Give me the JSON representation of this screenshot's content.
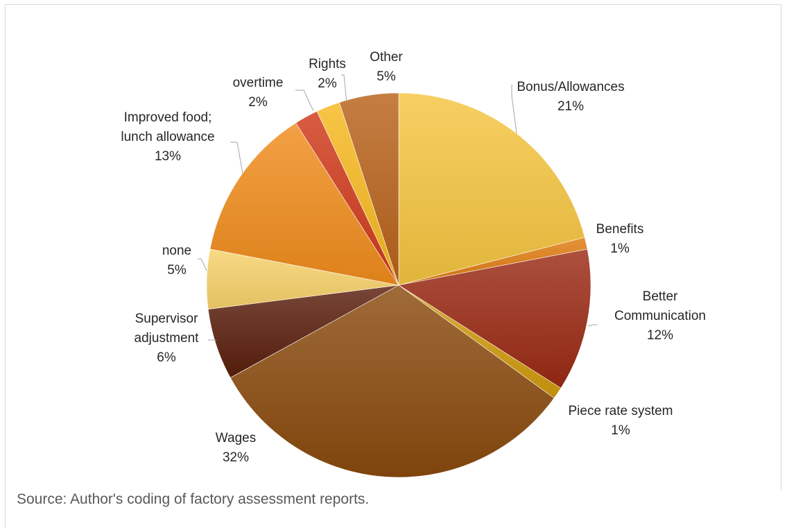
{
  "source_note": "Source: Author's coding of factory assessment reports.",
  "chart_data": {
    "type": "pie",
    "title": "",
    "start_angle_deg": 0,
    "direction": "clockwise",
    "slices": [
      {
        "label": "Bonus/Allowances",
        "value": 21,
        "display": "21%",
        "color": "#F5C540"
      },
      {
        "label": "Benefits",
        "value": 1,
        "display": "1%",
        "color": "#E07B10"
      },
      {
        "label": "Better Communication",
        "value": 12,
        "display": "12%",
        "color": "#9A2A14"
      },
      {
        "label": "Piece rate system",
        "value": 1,
        "display": "1%",
        "color": "#D19A0C"
      },
      {
        "label": "Wages",
        "value": 32,
        "display": "32%",
        "color": "#8A4A0E"
      },
      {
        "label": "Supervisor adjustment",
        "value": 6,
        "display": "6%",
        "color": "#5A1E0C"
      },
      {
        "label": "none",
        "value": 5,
        "display": "5%",
        "color": "#F7D26A"
      },
      {
        "label": "Improved food; lunch allowance",
        "value": 13,
        "display": "13%",
        "color": "#F08C1C"
      },
      {
        "label": "overtime",
        "value": 2,
        "display": "2%",
        "color": "#D03A1A"
      },
      {
        "label": "Rights",
        "value": 2,
        "display": "2%",
        "color": "#F6B81E"
      },
      {
        "label": "Other",
        "value": 5,
        "display": "5%",
        "color": "#B8621A"
      }
    ],
    "label_lines": [
      [
        "Bonus/Allowances",
        "21%"
      ],
      [
        "Benefits",
        "1%"
      ],
      [
        "Better",
        "Communication",
        "12%"
      ],
      [
        "Piece rate system",
        "1%"
      ],
      [
        "Wages",
        "32%"
      ],
      [
        "Supervisor",
        "adjustment",
        "6%"
      ],
      [
        "none",
        "5%"
      ],
      [
        "Improved food;",
        "lunch allowance",
        "13%"
      ],
      [
        "overtime",
        "2%"
      ],
      [
        "Rights",
        "2%"
      ],
      [
        "Other",
        "5%"
      ]
    ]
  }
}
